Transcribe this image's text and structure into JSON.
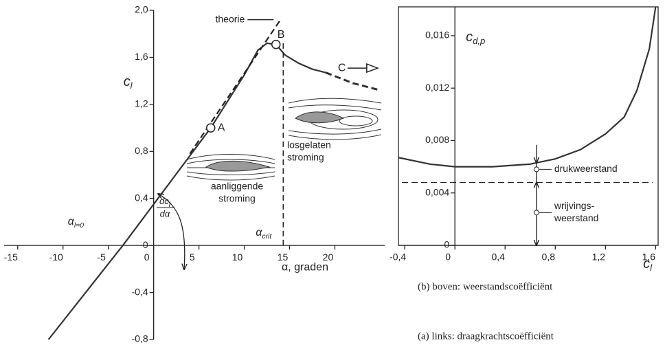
{
  "chart_data": [
    {
      "type": "line",
      "xlim": [
        -16.5,
        25.5
      ],
      "ylim": [
        -0.8,
        2.0
      ],
      "xticks": [
        -15,
        -10,
        -5,
        0,
        5,
        10,
        15,
        20
      ],
      "yticks": [
        {
          "value": -0.8,
          "label": "-0,8"
        },
        {
          "value": -0.4,
          "label": "-0,4"
        },
        0,
        {
          "value": 0.4,
          "label": "0,4"
        },
        {
          "value": 0.8,
          "label": "0,8"
        },
        {
          "value": 1.2,
          "label": "1,2"
        },
        {
          "value": 1.6,
          "label": "1,6"
        },
        {
          "value": 2.0,
          "label": "2,0"
        }
      ],
      "x_label": "α, graden",
      "y_label": {
        "main": "c",
        "sub": "l"
      },
      "series": [
        {
          "color": "#333333",
          "style": "solid",
          "x": [
            -11.6,
            -3.4,
            6.3,
            10,
            11.5,
            12.5,
            13.5,
            14.5,
            16,
            17.5,
            19
          ],
          "values": [
            -0.8,
            0,
            1.0,
            1.45,
            1.66,
            1.72,
            1.71,
            1.62,
            1.55,
            1.5,
            1.47
          ]
        },
        {
          "color": "#333333",
          "style": "dashed",
          "x": [
            19,
            22,
            25
          ],
          "values": [
            1.47,
            1.38,
            1.32
          ]
        },
        {
          "color": "#222222",
          "style": "dashed",
          "x": [
            4,
            14
          ],
          "values": [
            0.78,
            1.92
          ]
        }
      ],
      "points": [
        {
          "label": "A",
          "x": 6.3,
          "y": 1.0
        },
        {
          "label": "B",
          "x": 13.5,
          "y": 1.71
        }
      ],
      "theory_label": "theorie",
      "c_label": "C",
      "critical_x": 14.3,
      "crit_label": {
        "main": "α",
        "sub": "crit"
      },
      "zero_lift_label": {
        "main": "α",
        "sub": "l=0"
      },
      "slope_label": {
        "num_main": "dc",
        "num_sub": "l",
        "den": "dα"
      },
      "attached_flow": [
        "aanliggende",
        "stroming"
      ],
      "separated_flow": [
        "losgelaten",
        "stroming"
      ]
    },
    {
      "type": "line",
      "xlim": [
        -0.45,
        1.62
      ],
      "ylim": [
        0,
        0.0182
      ],
      "xticks": [
        {
          "value": -0.4,
          "label": "-0,4"
        },
        0,
        {
          "value": 0.4,
          "label": "0,4"
        },
        {
          "value": 0.8,
          "label": "0,8"
        },
        {
          "value": 1.2,
          "label": "1,2"
        },
        {
          "value": 1.6,
          "label": "1,6"
        }
      ],
      "yticks": [
        0,
        {
          "value": 0.004,
          "label": "0,004"
        },
        {
          "value": 0.008,
          "label": "0,008"
        },
        {
          "value": 0.012,
          "label": "0,012"
        },
        {
          "value": 0.016,
          "label": "0,016"
        }
      ],
      "x_label": {
        "main": "c",
        "sub": "l"
      },
      "y_label": {
        "main": "c",
        "sub": "d,p"
      },
      "series": [
        {
          "color": "#333333",
          "style": "solid",
          "x": [
            -0.45,
            -0.2,
            0,
            0.3,
            0.6,
            0.8,
            1.0,
            1.2,
            1.35,
            1.45,
            1.55,
            1.6
          ],
          "values": [
            0.0067,
            0.0062,
            0.006,
            0.006,
            0.0062,
            0.0066,
            0.0073,
            0.0085,
            0.0098,
            0.0118,
            0.015,
            0.0182
          ]
        }
      ],
      "reference_line": 0.0048,
      "annotations": [
        {
          "lines": [
            "drukweerstand"
          ],
          "x": 0.65,
          "y": 0.0058
        },
        {
          "lines": [
            "wrijvings-",
            "weerstand"
          ],
          "x": 0.65,
          "y": 0.0025
        }
      ]
    }
  ],
  "captions": [
    "(b) boven: weerstandscoëfficiënt",
    "(a) links: draagkrachtscoëfficiënt"
  ]
}
